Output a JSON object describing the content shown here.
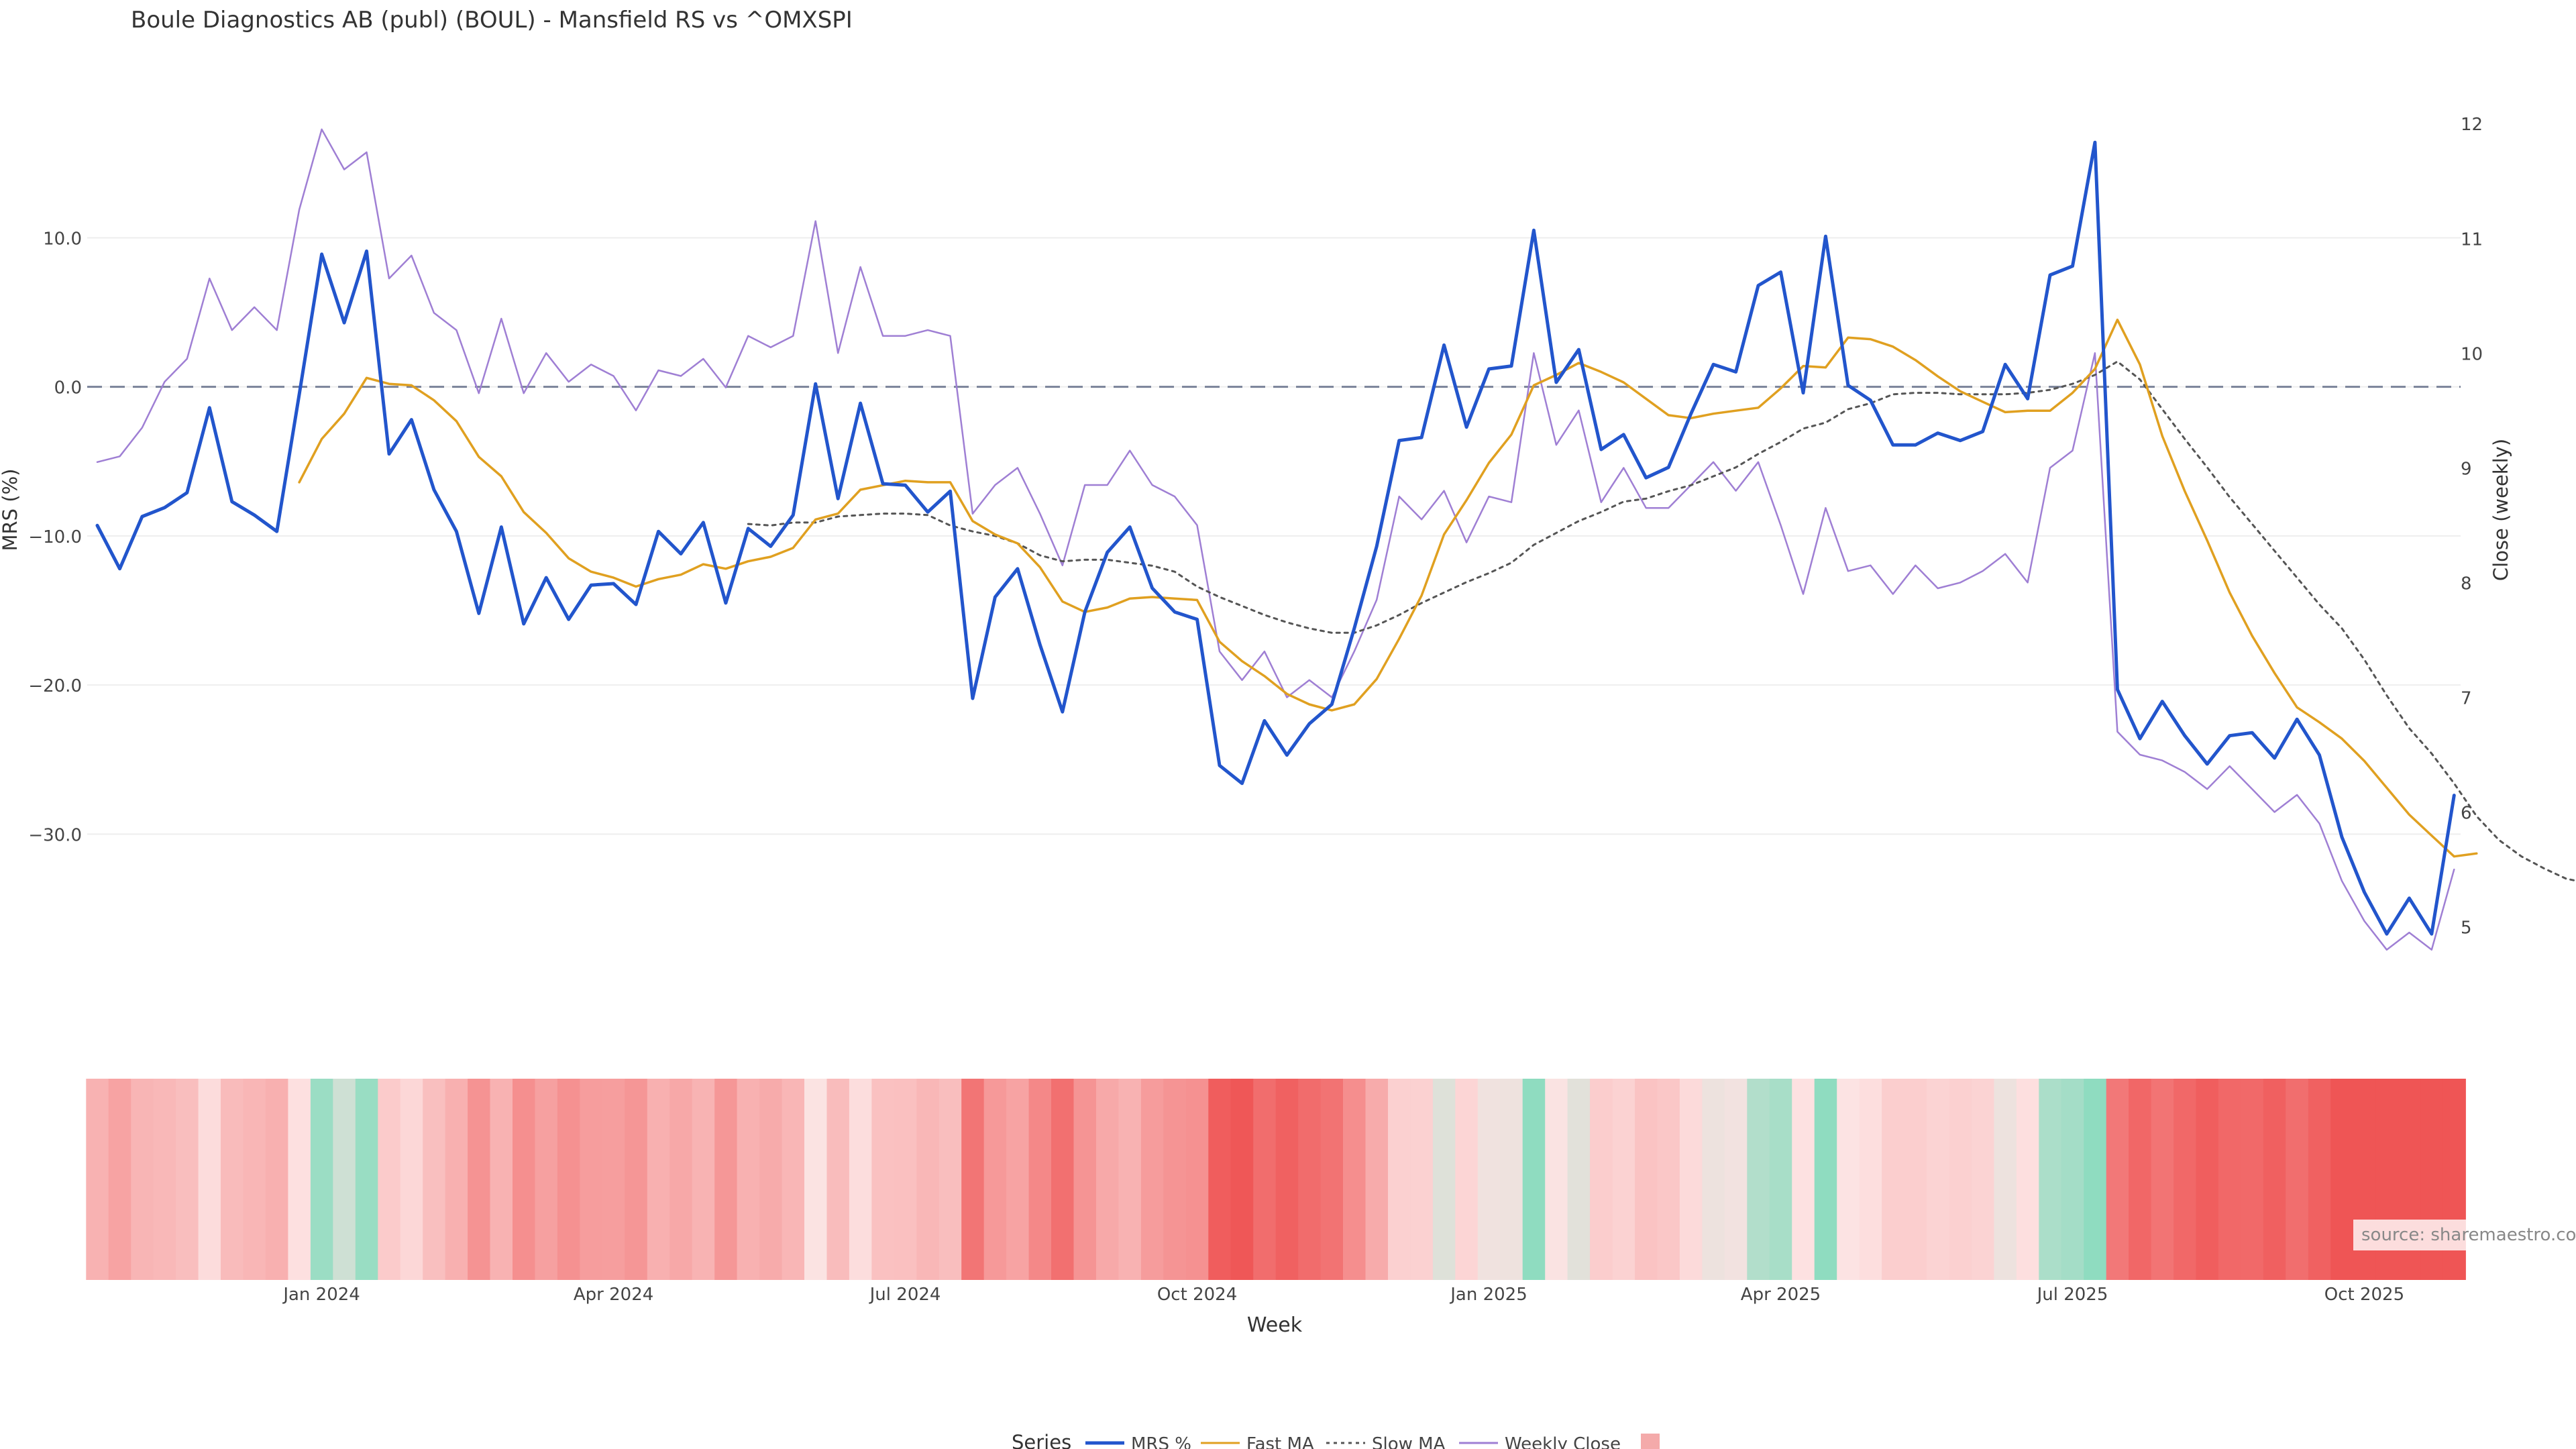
{
  "chart_data": {
    "type": "line",
    "title": "Boule Diagnostics AB (publ) (BOUL) - Mansfield RS vs ^OMXSPI",
    "xlabel": "Week",
    "ylabel_left": "MRS (%)",
    "ylabel_right": "Close (weekly)",
    "ylim_left": [
      -39.3,
      19.2
    ],
    "ylim_right": [
      4.6,
      12.2
    ],
    "y_ticks_left": [
      10,
      0,
      -10,
      -20,
      -30
    ],
    "y_tick_labels_left": [
      "10.0",
      "0.0",
      "−10.0",
      "−20.0",
      "−30.0"
    ],
    "y_ticks_right": [
      12,
      11,
      10,
      9,
      8,
      7,
      6,
      5
    ],
    "y_tick_labels_right": [
      "12",
      "11",
      "10",
      "9",
      "8",
      "7",
      "6",
      "5"
    ],
    "x_tick_labels": [
      "Jan 2024",
      "Apr 2024",
      "Jul 2024",
      "Oct 2024",
      "Jan 2025",
      "Apr 2025",
      "Jul 2025",
      "Oct 2025"
    ],
    "x_tick_weeks": [
      10,
      23,
      36,
      49,
      62,
      75,
      88,
      101
    ],
    "zero_line": 0,
    "grid": true,
    "legend_title": "Series",
    "legend_position": "bottom",
    "source_note": "source: sharemaestro.com",
    "series": [
      {
        "name": "MRS %",
        "axis": "left",
        "color": "#2255cc",
        "style": "solid",
        "start_week": 0,
        "values": [
          -9.3,
          -12.2,
          -8.7,
          -8.1,
          -7.1,
          -1.4,
          -7.7,
          -8.6,
          -9.7,
          -0.5,
          8.9,
          4.3,
          9.1,
          -4.5,
          -2.2,
          -6.9,
          -9.7,
          -15.2,
          -9.4,
          -15.9,
          -12.8,
          -15.6,
          -13.3,
          -13.2,
          -14.6,
          -9.7,
          -11.2,
          -9.1,
          -14.5,
          -9.5,
          -10.7,
          -8.6,
          0.2,
          -7.5,
          -1.1,
          -6.5,
          -6.6,
          -8.4,
          -7.0,
          -20.9,
          -14.1,
          -12.2,
          -17.3,
          -21.8,
          -15.1,
          -11.1,
          -9.4,
          -13.5,
          -15.1,
          -15.6,
          -25.4,
          -26.6,
          -22.4,
          -24.7,
          -22.6,
          -21.3,
          -16.2,
          -10.7,
          -3.6,
          -3.4,
          2.8,
          -2.7,
          1.2,
          1.4,
          10.5,
          0.3,
          2.5,
          -4.2,
          -3.2,
          -6.1,
          -5.4,
          -1.8,
          1.5,
          1.0,
          6.8,
          7.7,
          -0.4,
          10.1,
          0.1,
          -0.9,
          -3.9,
          -3.9,
          -3.1,
          -3.6,
          -3.0,
          1.5,
          -0.8,
          7.5,
          8.1,
          16.4,
          -20.3,
          -23.6,
          -21.1,
          -23.4,
          -25.3,
          -23.4,
          -23.2,
          -24.9,
          -22.3,
          -24.7,
          -30.2,
          -33.9,
          -36.7,
          -34.3,
          -36.7,
          -27.4
        ]
      },
      {
        "name": "Fast MA",
        "axis": "left",
        "color": "#e0a020",
        "style": "solid",
        "start_week": 9,
        "values": [
          -6.4,
          -3.5,
          -1.8,
          0.6,
          0.2,
          0.1,
          -0.9,
          -2.3,
          -4.7,
          -6.0,
          -8.4,
          -9.8,
          -11.5,
          -12.4,
          -12.8,
          -13.4,
          -12.9,
          -12.6,
          -11.9,
          -12.2,
          -11.7,
          -11.4,
          -10.8,
          -8.9,
          -8.5,
          -6.9,
          -6.6,
          -6.3,
          -6.4,
          -6.4,
          -9.0,
          -9.9,
          -10.5,
          -12.1,
          -14.4,
          -15.1,
          -14.8,
          -14.2,
          -14.1,
          -14.2,
          -14.3,
          -17.1,
          -18.4,
          -19.4,
          -20.6,
          -21.3,
          -21.7,
          -21.3,
          -19.6,
          -16.9,
          -14.0,
          -9.9,
          -7.6,
          -5.1,
          -3.2,
          0.1,
          0.8,
          1.6,
          1.0,
          0.3,
          -0.8,
          -1.9,
          -2.1,
          -1.8,
          -1.6,
          -1.4,
          -0.1,
          1.4,
          1.3,
          3.3,
          3.2,
          2.7,
          1.8,
          0.7,
          -0.3,
          -1.0,
          -1.7,
          -1.6,
          -1.6,
          -0.4,
          1.2,
          4.5,
          1.5,
          -3.3,
          -7.0,
          -10.3,
          -13.8,
          -16.7,
          -19.2,
          -21.5,
          -22.5,
          -23.6,
          -25.1,
          -26.9,
          -28.7,
          -30.1,
          -31.5,
          -31.3
        ]
      },
      {
        "name": "Slow MA",
        "axis": "left",
        "color": "#555555",
        "style": "dotted",
        "start_week": 29,
        "values": [
          -9.2,
          -9.3,
          -9.1,
          -9.1,
          -8.7,
          -8.6,
          -8.5,
          -8.5,
          -8.6,
          -9.3,
          -9.7,
          -10.0,
          -10.5,
          -11.3,
          -11.7,
          -11.6,
          -11.6,
          -11.8,
          -12.0,
          -12.4,
          -13.4,
          -14.1,
          -14.7,
          -15.3,
          -15.8,
          -16.2,
          -16.5,
          -16.5,
          -16.0,
          -15.3,
          -14.5,
          -13.8,
          -13.1,
          -12.5,
          -11.8,
          -10.6,
          -9.8,
          -9.0,
          -8.4,
          -7.7,
          -7.5,
          -7.0,
          -6.6,
          -6.0,
          -5.4,
          -4.5,
          -3.7,
          -2.8,
          -2.4,
          -1.5,
          -1.1,
          -0.5,
          -0.4,
          -0.4,
          -0.5,
          -0.5,
          -0.5,
          -0.4,
          -0.2,
          0.2,
          0.8,
          1.7,
          0.5,
          -1.5,
          -3.5,
          -5.4,
          -7.4,
          -9.2,
          -11.0,
          -12.8,
          -14.6,
          -16.2,
          -18.3,
          -20.7,
          -22.9,
          -24.6,
          -26.6,
          -28.8,
          -30.4,
          -31.5,
          -32.3,
          -33.0,
          -33.3
        ]
      },
      {
        "name": "Weekly Close",
        "axis": "right",
        "color": "#9f7fd4",
        "style": "solid",
        "start_week": 0,
        "values": [
          9.05,
          9.1,
          9.35,
          9.75,
          9.95,
          10.65,
          10.2,
          10.4,
          10.2,
          11.25,
          11.95,
          11.6,
          11.75,
          10.65,
          10.85,
          10.35,
          10.2,
          9.65,
          10.3,
          9.65,
          10.0,
          9.75,
          9.9,
          9.8,
          9.5,
          9.85,
          9.8,
          9.95,
          9.7,
          10.15,
          10.05,
          10.15,
          11.15,
          10.0,
          10.75,
          10.15,
          10.15,
          10.2,
          10.15,
          8.6,
          8.85,
          9.0,
          8.6,
          8.15,
          8.85,
          8.85,
          9.15,
          8.85,
          8.75,
          8.5,
          7.4,
          7.15,
          7.4,
          7.0,
          7.15,
          7.0,
          7.4,
          7.85,
          8.75,
          8.55,
          8.8,
          8.35,
          8.75,
          8.7,
          10.0,
          9.2,
          9.5,
          8.7,
          9.0,
          8.65,
          8.65,
          8.85,
          9.05,
          8.8,
          9.05,
          8.5,
          7.9,
          8.65,
          8.1,
          8.15,
          7.9,
          8.15,
          7.95,
          8.0,
          8.1,
          8.25,
          8.0,
          9.0,
          9.15,
          10.0,
          6.7,
          6.5,
          6.45,
          6.35,
          6.2,
          6.4,
          6.2,
          6.0,
          6.15,
          5.9,
          5.4,
          5.05,
          4.8,
          4.95,
          4.8,
          5.5
        ]
      }
    ],
    "heatmap_strip": {
      "color_scale": [
        "#ef5555",
        "#fde3e3",
        "#8fdcc0"
      ],
      "value_range": [
        -27,
        10
      ],
      "source_series": "MRS %"
    }
  }
}
